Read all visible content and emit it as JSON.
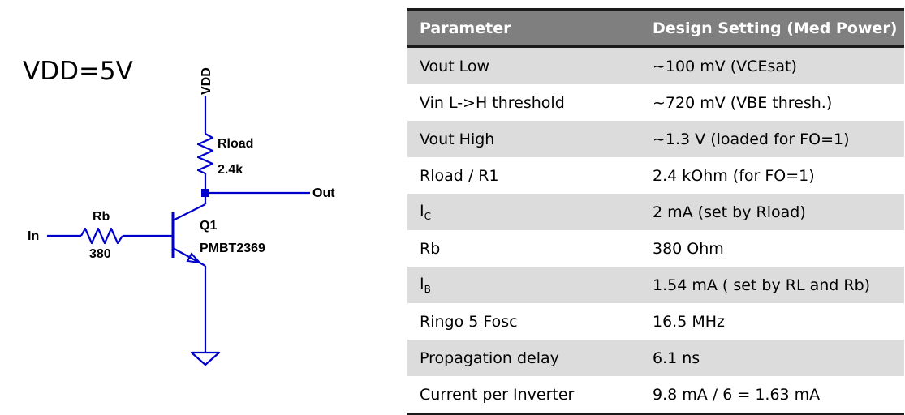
{
  "note": {
    "vdd": "VDD=5V"
  },
  "schematic": {
    "labels": {
      "vdd": "VDD",
      "rload_name": "Rload",
      "rload_value": "2.4k",
      "out": "Out",
      "input": "In",
      "rb_name": "Rb",
      "rb_value": "380",
      "q_name": "Q1",
      "q_part": "PMBT2369"
    },
    "wire_color": "#0000cc"
  },
  "table": {
    "headers": [
      "Parameter",
      "Design Setting (Med Power)"
    ],
    "rows": [
      {
        "param": "Vout Low",
        "value": "~100 mV (VCEsat)"
      },
      {
        "param": "Vin L->H threshold",
        "value": "~720 mV (VBE thresh.)"
      },
      {
        "param": "Vout High",
        "value": "~1.3 V (loaded for FO=1)"
      },
      {
        "param": "Rload / R1",
        "value": "2.4 kOhm (for FO=1)"
      },
      {
        "param": "I",
        "param_sub": "C",
        "value": "2 mA (set by Rload)"
      },
      {
        "param": "Rb",
        "value": "380 Ohm"
      },
      {
        "param": "I",
        "param_sub": "B",
        "value": "1.54 mA ( set by RL and Rb)"
      },
      {
        "param": "Ringo 5 Fosc",
        "value": "16.5 MHz"
      },
      {
        "param": "Propagation delay",
        "value": "6.1 ns"
      },
      {
        "param": "Current per Inverter",
        "value": "9.8 mA / 6 = 1.63 mA"
      }
    ],
    "header_color": "#7f7f7f",
    "stripe_color": "#dcdcdc"
  }
}
